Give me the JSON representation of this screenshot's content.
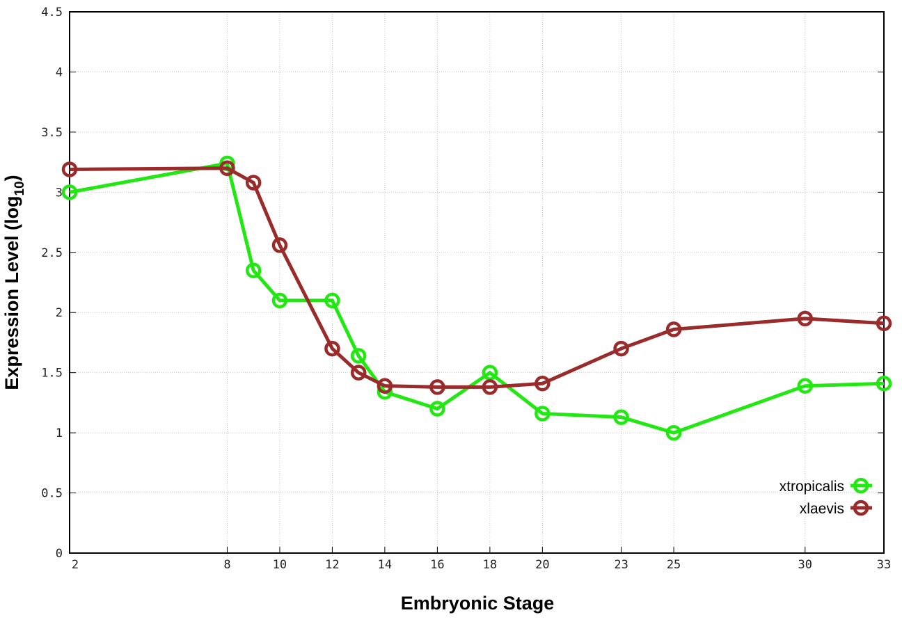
{
  "chart_data": {
    "type": "line",
    "title": "",
    "xlabel": "Embryonic Stage",
    "ylabel": "Expression Level (log",
    "ylabel_sub": "10",
    "ylabel_end": ")",
    "x": [
      2,
      8,
      9,
      10,
      12,
      13,
      14,
      16,
      18,
      20,
      23,
      25,
      30,
      33
    ],
    "xticks": [
      2,
      8,
      10,
      12,
      14,
      16,
      18,
      20,
      23,
      25,
      30,
      33
    ],
    "xlim": [
      2,
      33
    ],
    "ylim": [
      0,
      4.5
    ],
    "yticks": [
      "0",
      "0.5",
      "1",
      "1.5",
      "2",
      "2.5",
      "3",
      "3.5",
      "4",
      "4.5"
    ],
    "grid": true,
    "legend_position": "bottom-right",
    "marker": "open-circle",
    "series": [
      {
        "name": "xtropicalis",
        "color": "#22e812",
        "values": [
          3.0,
          3.24,
          2.35,
          2.1,
          2.1,
          1.64,
          1.34,
          1.2,
          1.5,
          1.16,
          1.13,
          1.0,
          1.39,
          1.41
        ]
      },
      {
        "name": "xlaevis",
        "color": "#9a2b2b",
        "values": [
          3.19,
          3.2,
          3.08,
          2.56,
          1.7,
          1.5,
          1.39,
          1.38,
          1.38,
          1.41,
          1.7,
          1.86,
          1.95,
          1.91
        ]
      }
    ]
  }
}
